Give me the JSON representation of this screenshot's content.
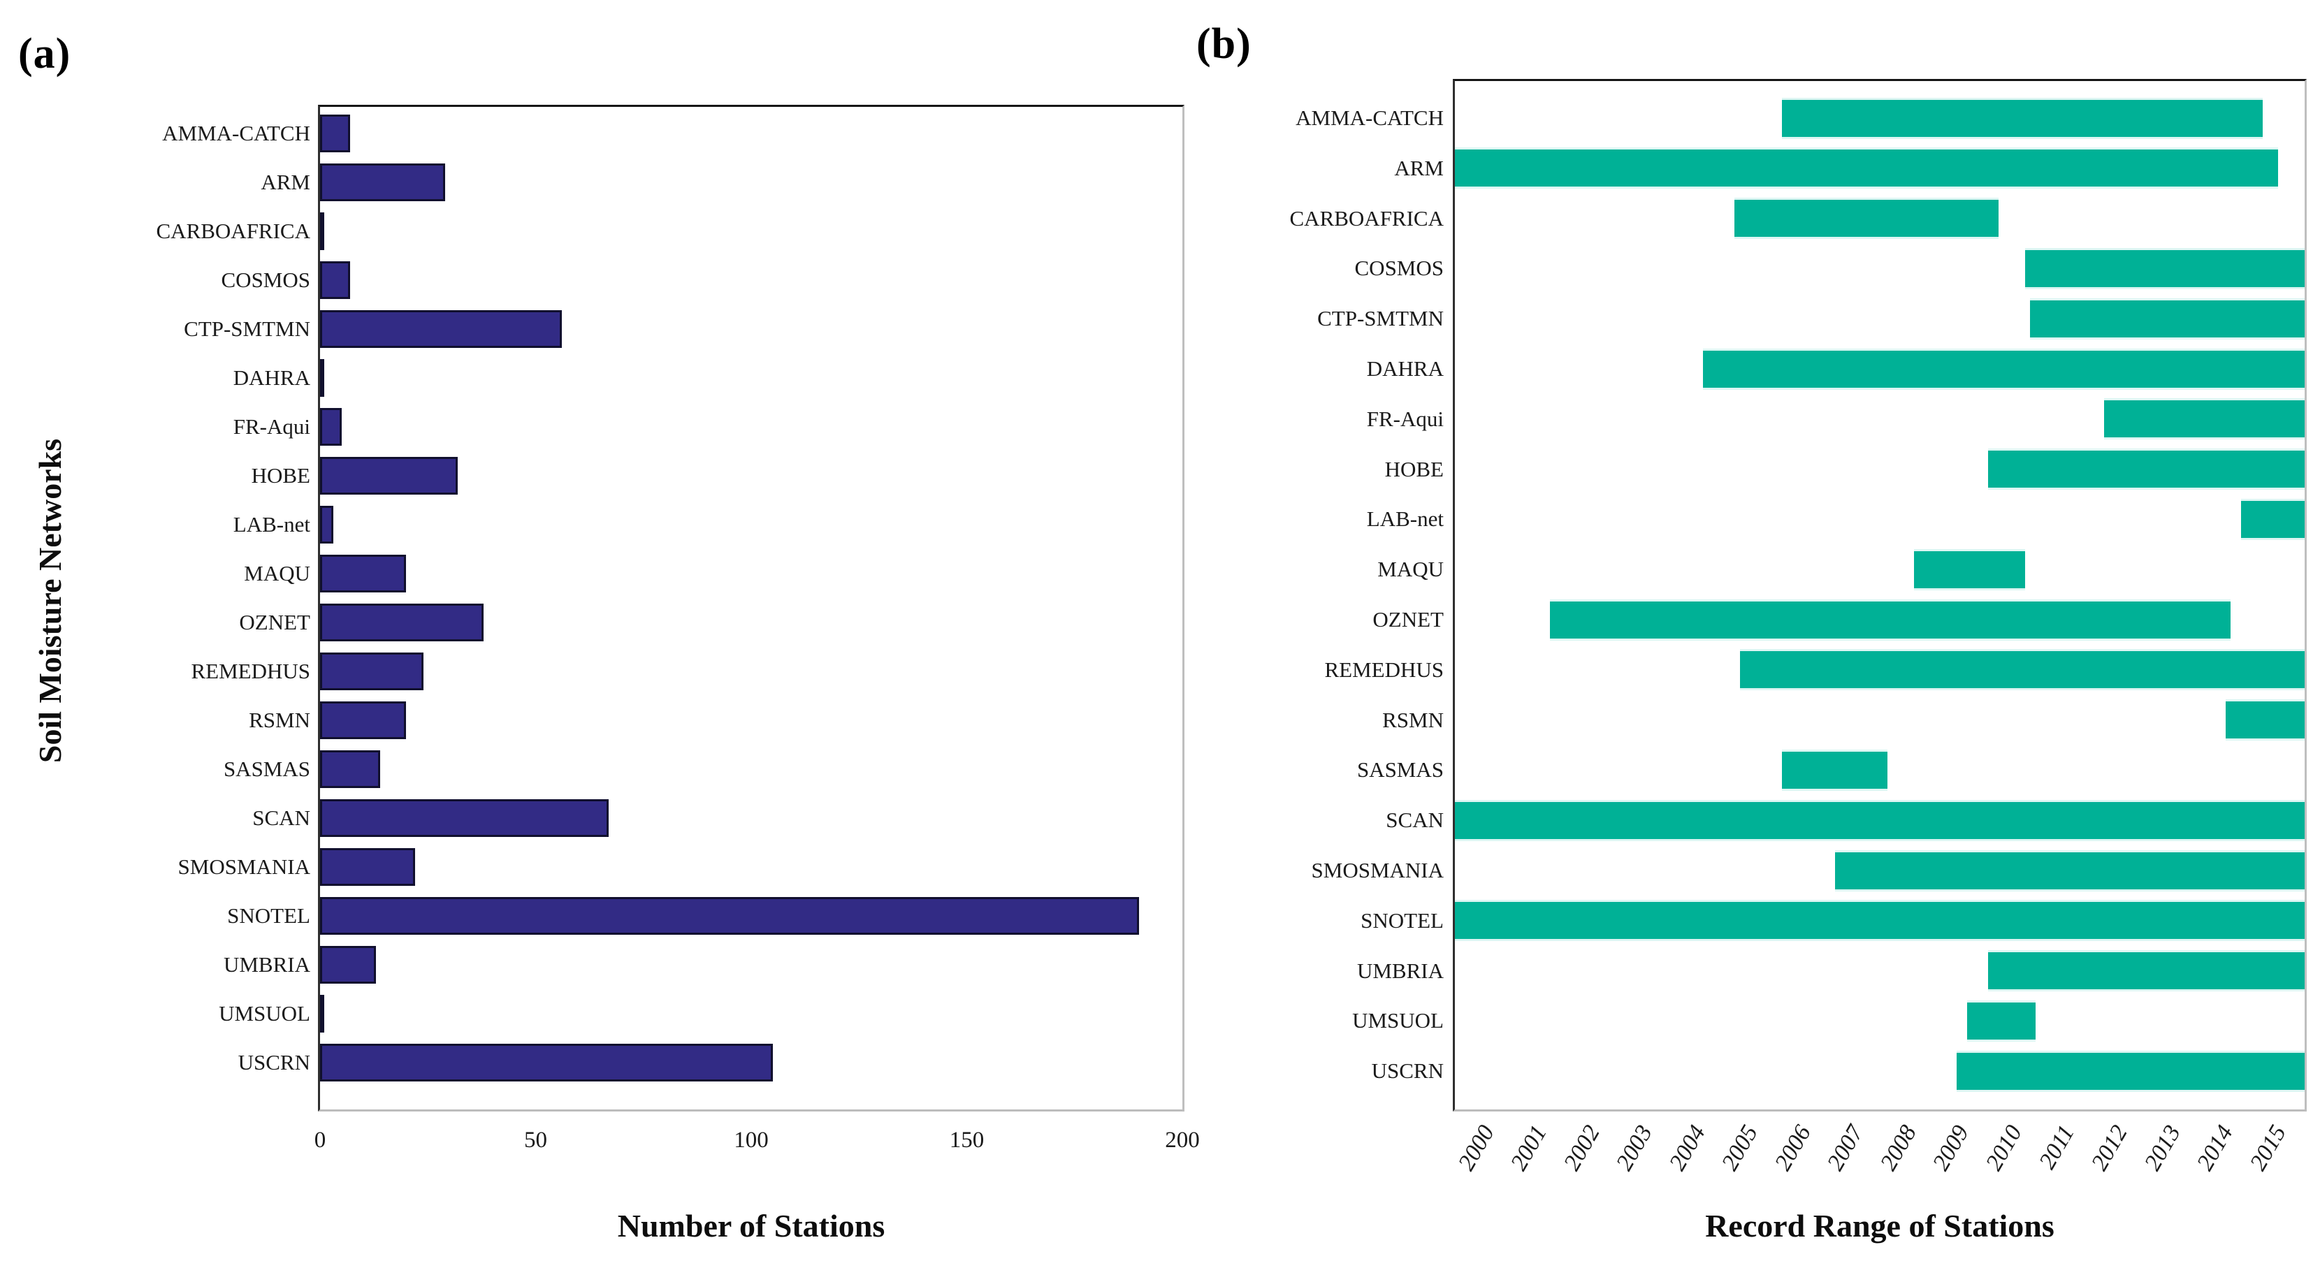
{
  "figure": {
    "background": "#ffffff",
    "text_color": "#111111"
  },
  "chart_data": [
    {
      "panel_tag": "(a)",
      "type": "bar",
      "orientation": "horizontal",
      "title": "",
      "xlabel": "Number of Stations",
      "ylabel": "Soil Moisture Networks",
      "xlim": [
        0,
        200
      ],
      "xticks": [
        0,
        50,
        100,
        150,
        200
      ],
      "grid": false,
      "legend": null,
      "bar_color": "#322b85",
      "bar_edge_color": "#11102e",
      "categories": [
        "AMMA-CATCH",
        "ARM",
        "CARBOAFRICA",
        "COSMOS",
        "CTP-SMTMN",
        "DAHRA",
        "FR-Aqui",
        "HOBE",
        "LAB-net",
        "MAQU",
        "OZNET",
        "REMEDHUS",
        "RSMN",
        "SASMAS",
        "SCAN",
        "SMOSMANIA",
        "SNOTEL",
        "UMBRIA",
        "UMSUOL",
        "USCRN"
      ],
      "values": [
        7,
        29,
        1,
        7,
        56,
        1,
        5,
        32,
        3,
        20,
        38,
        24,
        20,
        14,
        67,
        22,
        190,
        13,
        1,
        105
      ]
    },
    {
      "panel_tag": "(b)",
      "type": "range_bar",
      "orientation": "horizontal",
      "title": "",
      "xlabel": "Record Range of Stations",
      "ylabel": "",
      "xlim": [
        1999.7,
        2015.8
      ],
      "xticks": [
        2000,
        2001,
        2002,
        2003,
        2004,
        2005,
        2006,
        2007,
        2008,
        2009,
        2010,
        2011,
        2012,
        2013,
        2014,
        2015
      ],
      "grid": false,
      "legend": null,
      "bar_color": "#00b196",
      "categories": [
        "AMMA-CATCH",
        "ARM",
        "CARBOAFRICA",
        "COSMOS",
        "CTP-SMTMN",
        "DAHRA",
        "FR-Aqui",
        "HOBE",
        "LAB-net",
        "MAQU",
        "OZNET",
        "REMEDHUS",
        "RSMN",
        "SASMAS",
        "SCAN",
        "SMOSMANIA",
        "SNOTEL",
        "UMBRIA",
        "UMSUOL",
        "USCRN"
      ],
      "ranges": [
        [
          2005.9,
          2015.0
        ],
        [
          1999.7,
          2015.3
        ],
        [
          2005.0,
          2010.0
        ],
        [
          2010.5,
          2015.8
        ],
        [
          2010.6,
          2015.8
        ],
        [
          2004.4,
          2015.8
        ],
        [
          2012.0,
          2015.8
        ],
        [
          2009.8,
          2015.8
        ],
        [
          2014.6,
          2015.8
        ],
        [
          2008.4,
          2010.5
        ],
        [
          2001.5,
          2014.4
        ],
        [
          2005.1,
          2015.8
        ],
        [
          2014.3,
          2015.8
        ],
        [
          2005.9,
          2007.9
        ],
        [
          1999.7,
          2015.8
        ],
        [
          2006.9,
          2015.8
        ],
        [
          1999.7,
          2015.8
        ],
        [
          2009.8,
          2015.8
        ],
        [
          2009.4,
          2010.7
        ],
        [
          2009.2,
          2015.8
        ]
      ]
    }
  ]
}
